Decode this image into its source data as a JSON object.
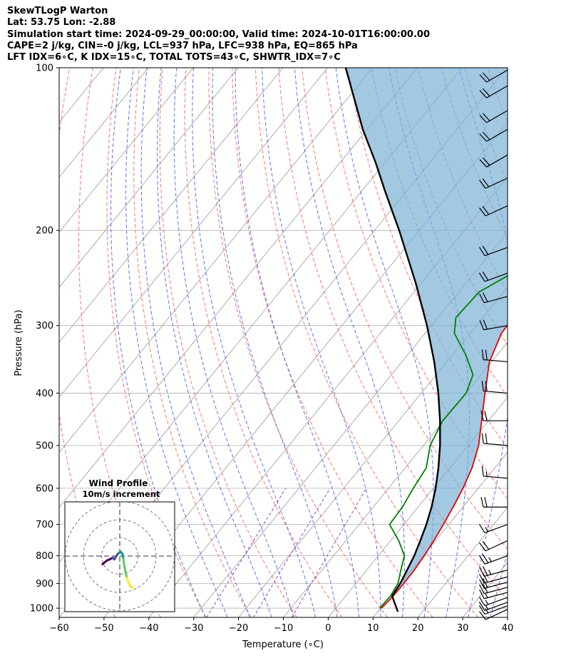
{
  "header": {
    "line1": "SkewTLogP Warton",
    "line2": "Lat: 53.75   Lon: -2.88",
    "line3": "Simulation start time: 2024-09-29_00:00:00, Valid time: 2024-10-01T16:00:00.00",
    "line4": "CAPE=2 j/kg, CIN=-0 j/kg, LCL=937 hPa, LFC=938 hPa, EQ=865 hPa",
    "line5": "LFT IDX=6∘C, K IDX=15∘C, TOTAL TOTS=43∘C, SHWTR_IDX=7∘C"
  },
  "chart_data": {
    "type": "line",
    "xlabel": "Temperature (∘C)",
    "ylabel": "Pressure (hPa)",
    "xlim": [
      -60,
      40
    ],
    "ylim": [
      1040,
      100
    ],
    "y_scale": "log",
    "x_ticks": [
      -60,
      -50,
      -40,
      -30,
      -20,
      -10,
      0,
      10,
      20,
      30,
      40
    ],
    "x_tick_labels": [
      "−60",
      "−50",
      "−40",
      "−30",
      "−20",
      "−10",
      "0",
      "10",
      "20",
      "30",
      "40"
    ],
    "y_ticks": [
      1000,
      900,
      800,
      700,
      600,
      500,
      400,
      300,
      200,
      100
    ],
    "y_tick_labels": [
      "1000",
      "900",
      "800",
      "700",
      "600",
      "500",
      "400",
      "300",
      "200",
      "100"
    ],
    "grid": true,
    "series": [
      {
        "color": "#e00000",
        "points": [
          [
            1000,
            10.2
          ],
          [
            950,
            10.6
          ],
          [
            900,
            10.7
          ],
          [
            850,
            10.6
          ],
          [
            800,
            10.2
          ],
          [
            750,
            9.6
          ],
          [
            700,
            8.8
          ],
          [
            650,
            7.8
          ],
          [
            600,
            6.6
          ],
          [
            550,
            4.9
          ],
          [
            500,
            2.3
          ],
          [
            450,
            -1.5
          ],
          [
            400,
            -5.8
          ],
          [
            350,
            -10.5
          ],
          [
            310,
            -13.0
          ],
          [
            290,
            -13.2
          ],
          [
            270,
            -12.4
          ],
          [
            250,
            -10.0
          ],
          [
            220,
            -4.5
          ],
          [
            200,
            -0.5
          ],
          [
            180,
            1.8
          ],
          [
            160,
            3.5
          ],
          [
            140,
            5.3
          ],
          [
            130,
            7.3
          ],
          [
            120,
            10.0
          ],
          [
            110,
            12.5
          ],
          [
            100,
            14.0
          ]
        ]
      },
      {
        "color": "#008000",
        "points": [
          [
            1000,
            9.8
          ],
          [
            950,
            10.0
          ],
          [
            900,
            9.4
          ],
          [
            850,
            7.6
          ],
          [
            800,
            5.8
          ],
          [
            750,
            1.8
          ],
          [
            700,
            -3.2
          ],
          [
            650,
            -3.5
          ],
          [
            600,
            -4.5
          ],
          [
            550,
            -5.3
          ],
          [
            500,
            -8.5
          ],
          [
            450,
            -10.2
          ],
          [
            400,
            -10.0
          ],
          [
            370,
            -11.8
          ],
          [
            340,
            -17.0
          ],
          [
            310,
            -23.5
          ],
          [
            290,
            -26.0
          ],
          [
            260,
            -25.5
          ],
          [
            240,
            -21.5
          ],
          [
            220,
            -19.5
          ],
          [
            200,
            -21.0
          ],
          [
            180,
            -22.0
          ],
          [
            177,
            -23.0
          ],
          [
            170,
            -14.0
          ],
          [
            150,
            0.5
          ],
          [
            130,
            13.5
          ],
          [
            115,
            21.0
          ],
          [
            100,
            28.0
          ]
        ]
      },
      {
        "color": "#000000",
        "points": [
          [
            1015,
            14.5
          ],
          [
            950,
            10.4
          ],
          [
            900,
            9.9
          ],
          [
            850,
            9.0
          ],
          [
            800,
            8.0
          ],
          [
            750,
            6.6
          ],
          [
            700,
            5.0
          ],
          [
            650,
            3.0
          ],
          [
            600,
            0.5
          ],
          [
            550,
            -2.6
          ],
          [
            500,
            -6.3
          ],
          [
            450,
            -10.8
          ],
          [
            400,
            -16.2
          ],
          [
            350,
            -22.8
          ],
          [
            300,
            -31.0
          ],
          [
            250,
            -41.3
          ],
          [
            200,
            -54.5
          ],
          [
            170,
            -64.5
          ],
          [
            150,
            -72.0
          ],
          [
            130,
            -81.0
          ],
          [
            115,
            -88.0
          ],
          [
            100,
            -96.0
          ]
        ]
      }
    ],
    "cape_fill_color": "#7bb0d6",
    "dry_adiabat_color": "#ff4444",
    "moist_adiabat_color": "#2233ee",
    "mixing_ratio_color": "#8833aa",
    "isotherm_color": "#999999",
    "wind_barbs": [
      {
        "p": 1005,
        "dir": 245,
        "spd": 10
      },
      {
        "p": 990,
        "dir": 250,
        "spd": 15
      },
      {
        "p": 975,
        "dir": 250,
        "spd": 15
      },
      {
        "p": 955,
        "dir": 250,
        "spd": 15
      },
      {
        "p": 935,
        "dir": 255,
        "spd": 15
      },
      {
        "p": 915,
        "dir": 255,
        "spd": 20
      },
      {
        "p": 895,
        "dir": 255,
        "spd": 20
      },
      {
        "p": 875,
        "dir": 255,
        "spd": 20
      },
      {
        "p": 850,
        "dir": 255,
        "spd": 25
      },
      {
        "p": 800,
        "dir": 250,
        "spd": 25
      },
      {
        "p": 750,
        "dir": 245,
        "spd": 20
      },
      {
        "p": 700,
        "dir": 250,
        "spd": 15
      },
      {
        "p": 650,
        "dir": 270,
        "spd": 20
      },
      {
        "p": 575,
        "dir": 275,
        "spd": 15
      },
      {
        "p": 500,
        "dir": 275,
        "spd": 20
      },
      {
        "p": 450,
        "dir": 270,
        "spd": 20
      },
      {
        "p": 400,
        "dir": 275,
        "spd": 20
      },
      {
        "p": 350,
        "dir": 275,
        "spd": 20
      },
      {
        "p": 300,
        "dir": 260,
        "spd": 20
      },
      {
        "p": 265,
        "dir": 255,
        "spd": 20
      },
      {
        "p": 240,
        "dir": 250,
        "spd": 20
      },
      {
        "p": 215,
        "dir": 250,
        "spd": 20
      },
      {
        "p": 180,
        "dir": 245,
        "spd": 20
      },
      {
        "p": 160,
        "dir": 245,
        "spd": 20
      },
      {
        "p": 145,
        "dir": 240,
        "spd": 20
      },
      {
        "p": 130,
        "dir": 240,
        "spd": 20
      },
      {
        "p": 120,
        "dir": 240,
        "spd": 20
      },
      {
        "p": 108,
        "dir": 240,
        "spd": 20
      },
      {
        "p": 101,
        "dir": 240,
        "spd": 20
      }
    ],
    "hodograph": {
      "title": "Wind Profile",
      "subtitle": "10m/s increment",
      "ring_step_ms": 10,
      "rings": 3,
      "trace_colors": [
        "#440154",
        "#3b528b",
        "#21918c",
        "#5ec962",
        "#fde725"
      ],
      "points": [
        [
          -9.5,
          -1.5
        ],
        [
          -8.5,
          -1.2
        ],
        [
          -7.0,
          -0.8
        ],
        [
          -5.5,
          -0.6
        ],
        [
          -4.0,
          -0.3
        ],
        [
          -3.0,
          -0.6
        ],
        [
          -1.5,
          0.2
        ],
        [
          -0.5,
          0.6
        ],
        [
          0.5,
          0.8
        ],
        [
          1.5,
          0.4
        ],
        [
          2.0,
          -0.5
        ],
        [
          2.5,
          -1.8
        ],
        [
          3.2,
          -3.0
        ],
        [
          4.0,
          -4.0
        ],
        [
          5.0,
          -5.0
        ],
        [
          6.0,
          -5.6
        ],
        [
          7.0,
          -5.8
        ]
      ]
    }
  }
}
